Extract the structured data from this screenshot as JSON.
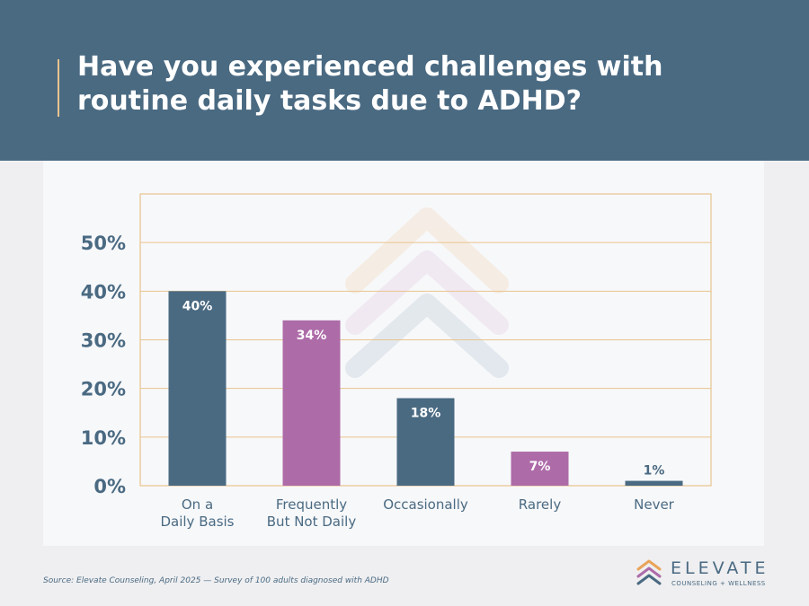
{
  "header": {
    "title": "Have you experienced challenges with routine daily tasks due to ADHD?"
  },
  "chart_data": {
    "type": "bar",
    "title": "Have you experienced challenges with routine daily tasks due to ADHD?",
    "categories": [
      [
        "On a",
        "Daily Basis"
      ],
      [
        "Frequently",
        "But Not Daily"
      ],
      [
        "Occasionally"
      ],
      [
        "Rarely"
      ],
      [
        "Never"
      ]
    ],
    "values": [
      40,
      34,
      18,
      7,
      1
    ],
    "value_labels": [
      "40%",
      "34%",
      "18%",
      "7%",
      "1%"
    ],
    "bar_colors": [
      "#4a6a82",
      "#ad6ba8",
      "#4a6a82",
      "#ad6ba8",
      "#4a6a82"
    ],
    "yticks": [
      0,
      10,
      20,
      30,
      40,
      50
    ],
    "ytick_labels": [
      "0%",
      "10%",
      "20%",
      "30%",
      "40%",
      "50%"
    ],
    "ylim": [
      0,
      60
    ],
    "grid": true,
    "colors": {
      "primary": "#4a6a82",
      "secondary": "#ad6ba8",
      "grid": "#e9c48e"
    }
  },
  "footer": {
    "source": "Source: Elevate Counseling, April 2025 — Survey of 100 adults diagnosed with ADHD"
  },
  "logo": {
    "brand": "ELEVATE",
    "tagline": "COUNSELING + WELLNESS"
  }
}
